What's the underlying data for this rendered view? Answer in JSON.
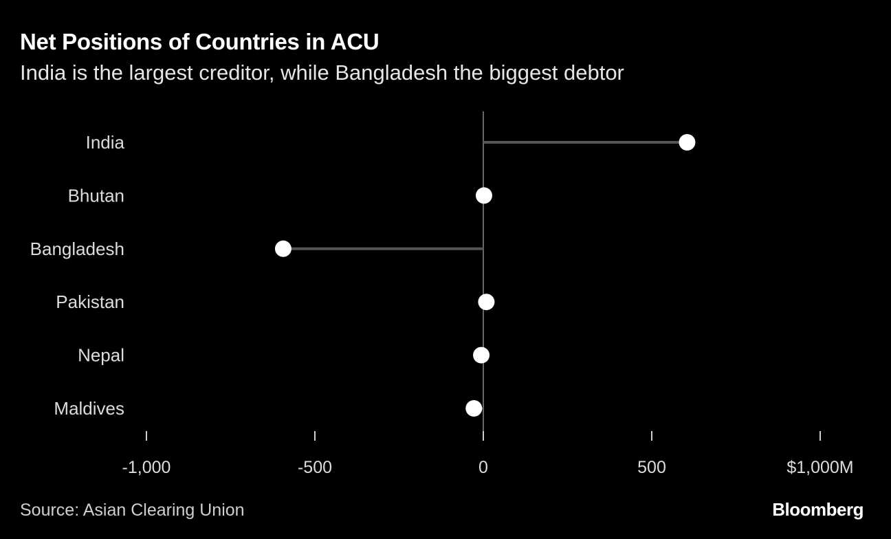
{
  "chart_data": {
    "type": "dot",
    "title": "Net Positions of Countries in ACU",
    "subtitle": "India is the largest creditor, while Bangladesh the biggest debtor",
    "categories": [
      "India",
      "Bhutan",
      "Bangladesh",
      "Pakistan",
      "Nepal",
      "Maldives"
    ],
    "values": [
      605,
      2,
      -594,
      9,
      -6,
      -28
    ],
    "unit": "$M",
    "xlim": [
      -1000,
      1000
    ],
    "xticks": [
      -1000,
      -500,
      0,
      500,
      1000
    ],
    "xtick_labels": [
      "-1,000",
      "-500",
      "0",
      "500",
      "$1,000M"
    ],
    "grid": false,
    "legend": "none",
    "colors": {
      "background": "#000000",
      "dot": "#ffffff",
      "stem": "#555555",
      "zero_line": "#666666"
    },
    "source": "Source: Asian Clearing Union",
    "logo": "Bloomberg"
  }
}
